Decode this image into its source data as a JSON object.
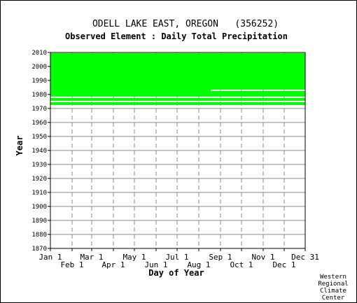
{
  "chart_data": {
    "type": "heatmap",
    "title": "ODELL LAKE EAST, OREGON   (356252)",
    "subtitle": "Observed Element : Daily Total Precipitation",
    "xlabel": "Day of Year",
    "ylabel": "Year",
    "ylim": [
      1870,
      2010
    ],
    "xlim": [
      1,
      365
    ],
    "grid": true,
    "series_color": "#00ff00",
    "x_ticks_upper": [
      {
        "label": "Jan 1",
        "day": 1
      },
      {
        "label": "Mar 1",
        "day": 60
      },
      {
        "label": "May 1",
        "day": 121
      },
      {
        "label": "Jul 1",
        "day": 182
      },
      {
        "label": "Sep 1",
        "day": 244
      },
      {
        "label": "Nov 1",
        "day": 305
      },
      {
        "label": "Dec 31",
        "day": 365
      }
    ],
    "x_ticks_lower": [
      {
        "label": "Feb 1",
        "day": 32
      },
      {
        "label": "Apr 1",
        "day": 91
      },
      {
        "label": "Jun 1",
        "day": 152
      },
      {
        "label": "Aug 1",
        "day": 213
      },
      {
        "label": "Oct 1",
        "day": 274
      },
      {
        "label": "Dec 1",
        "day": 335
      }
    ],
    "y_ticks": [
      "1870",
      "1880",
      "1890",
      "1900",
      "1910",
      "1920",
      "1930",
      "1940",
      "1950",
      "1960",
      "1970",
      "1980",
      "1990",
      "2000",
      "2010"
    ],
    "data_coverage": [
      {
        "year": 1973,
        "start_day": 1,
        "end_day": 365
      },
      {
        "year": 1974,
        "start_day": 1,
        "end_day": 365
      },
      {
        "year": 1976,
        "start_day": 1,
        "end_day": 365
      },
      {
        "year": 1977,
        "start_day": 1,
        "end_day": 365
      },
      {
        "year": 1979,
        "start_day": 1,
        "end_day": 365
      },
      {
        "year": 1980,
        "start_day": 1,
        "end_day": 365
      },
      {
        "year": 1981,
        "start_day": 1,
        "end_day": 365
      },
      {
        "year": 1982,
        "start_day": 1,
        "end_day": 365
      },
      {
        "year": 1983,
        "start_day": 1,
        "end_day": 230
      },
      {
        "year": 1984,
        "start_day": 1,
        "end_day": 365
      },
      {
        "year": 1985,
        "start_day": 1,
        "end_day": 365
      },
      {
        "year": 1986,
        "start_day": 1,
        "end_day": 365
      },
      {
        "year": 1987,
        "start_day": 1,
        "end_day": 365
      },
      {
        "year": 1988,
        "start_day": 1,
        "end_day": 365
      },
      {
        "year": 1989,
        "start_day": 1,
        "end_day": 365
      },
      {
        "year": 1990,
        "start_day": 1,
        "end_day": 365
      },
      {
        "year": 1991,
        "start_day": 1,
        "end_day": 365
      },
      {
        "year": 1992,
        "start_day": 1,
        "end_day": 365
      },
      {
        "year": 1993,
        "start_day": 1,
        "end_day": 365
      },
      {
        "year": 1994,
        "start_day": 1,
        "end_day": 365
      },
      {
        "year": 1995,
        "start_day": 1,
        "end_day": 365
      },
      {
        "year": 1996,
        "start_day": 1,
        "end_day": 365
      },
      {
        "year": 1997,
        "start_day": 1,
        "end_day": 365
      },
      {
        "year": 1998,
        "start_day": 1,
        "end_day": 365
      },
      {
        "year": 1999,
        "start_day": 1,
        "end_day": 365
      },
      {
        "year": 2000,
        "start_day": 1,
        "end_day": 365
      },
      {
        "year": 2001,
        "start_day": 1,
        "end_day": 365
      },
      {
        "year": 2002,
        "start_day": 1,
        "end_day": 365
      },
      {
        "year": 2003,
        "start_day": 1,
        "end_day": 365
      },
      {
        "year": 2004,
        "start_day": 1,
        "end_day": 365
      },
      {
        "year": 2005,
        "start_day": 1,
        "end_day": 365
      },
      {
        "year": 2006,
        "start_day": 1,
        "end_day": 365
      },
      {
        "year": 2007,
        "start_day": 1,
        "end_day": 365
      },
      {
        "year": 2008,
        "start_day": 1,
        "end_day": 365
      },
      {
        "year": 2009,
        "start_day": 1,
        "end_day": 365
      }
    ]
  },
  "credit": [
    "Western",
    "Regional",
    "Climate",
    "Center"
  ]
}
